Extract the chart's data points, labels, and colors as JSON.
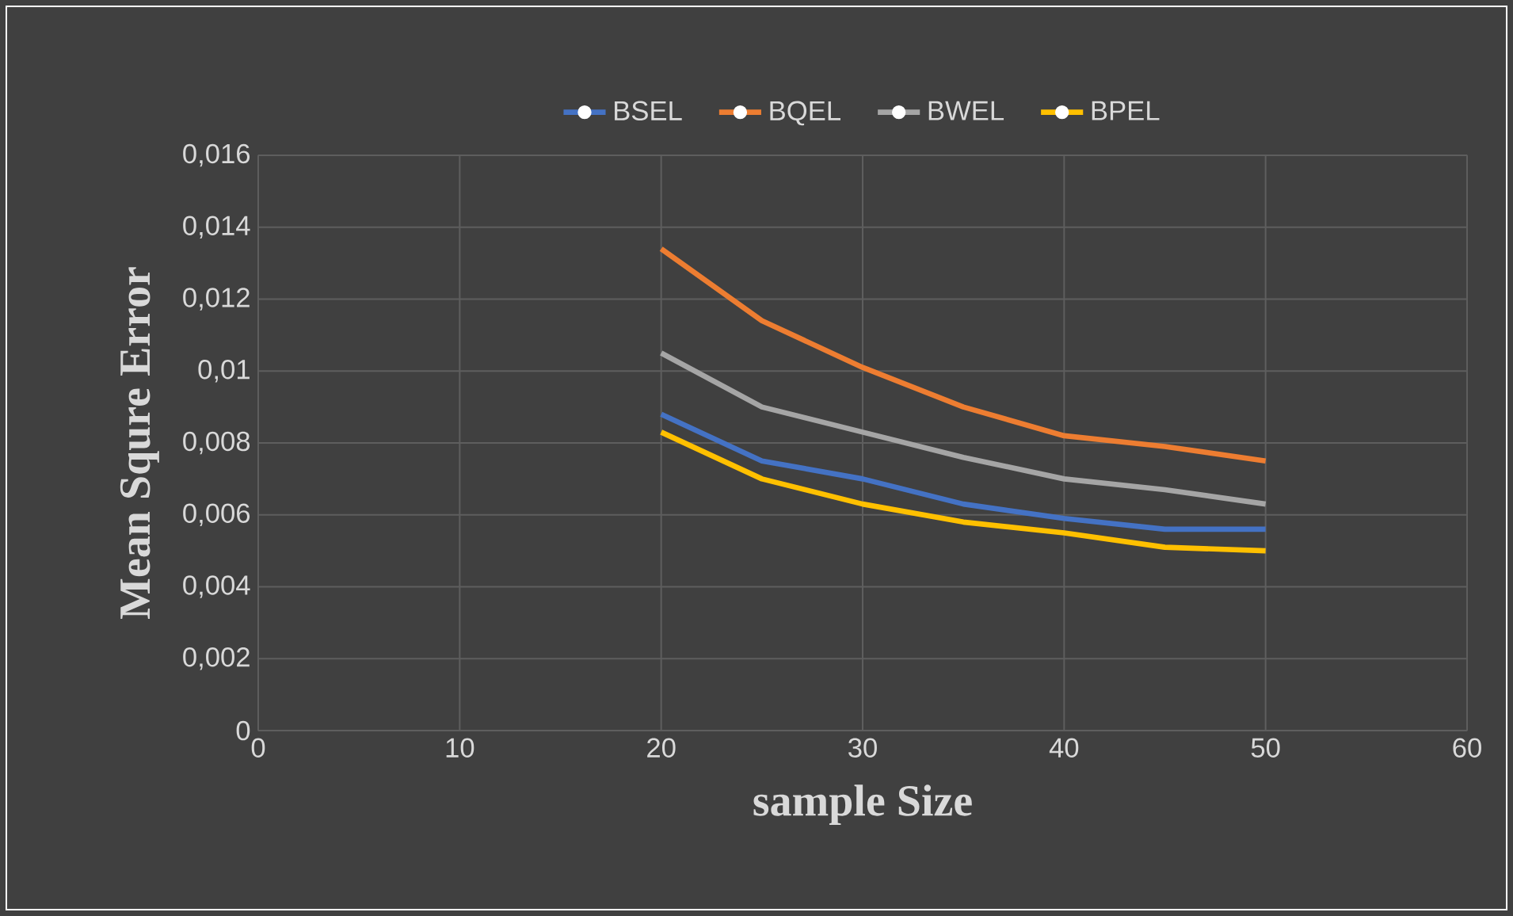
{
  "chart_data": {
    "type": "line",
    "xlabel": "sample Size",
    "ylabel": "Mean Squre Error",
    "x": [
      20,
      25,
      30,
      35,
      40,
      45,
      50
    ],
    "series": [
      {
        "name": "BSEL",
        "color": "#4472c4",
        "values": [
          0.0088,
          0.0075,
          0.007,
          0.0063,
          0.0059,
          0.0056,
          0.0056
        ]
      },
      {
        "name": "BQEL",
        "color": "#ed7d31",
        "values": [
          0.0134,
          0.0114,
          0.0101,
          0.009,
          0.0082,
          0.0079,
          0.0075
        ]
      },
      {
        "name": "BWEL",
        "color": "#a5a5a5",
        "values": [
          0.0105,
          0.009,
          0.0083,
          0.0076,
          0.007,
          0.0067,
          0.0063
        ]
      },
      {
        "name": "BPEL",
        "color": "#ffc000",
        "values": [
          0.0083,
          0.007,
          0.0063,
          0.0058,
          0.0055,
          0.0051,
          0.005
        ]
      }
    ],
    "xlim": [
      0,
      60
    ],
    "xticks": [
      0,
      10,
      20,
      30,
      40,
      50,
      60
    ],
    "ylim": [
      0,
      0.016
    ],
    "yticks": [
      0,
      {
        "value": 0.002,
        "label": "0,002"
      },
      {
        "value": 0.004,
        "label": "0,004"
      },
      {
        "value": 0.006,
        "label": "0,006"
      },
      {
        "value": 0.008,
        "label": "0,008"
      },
      {
        "value": 0.01,
        "label": "0,01"
      },
      {
        "value": 0.012,
        "label": "0,012"
      },
      {
        "value": 0.014,
        "label": "0,014"
      },
      {
        "value": 0.016,
        "label": "0,016"
      }
    ],
    "grid": true,
    "legend": "top"
  }
}
